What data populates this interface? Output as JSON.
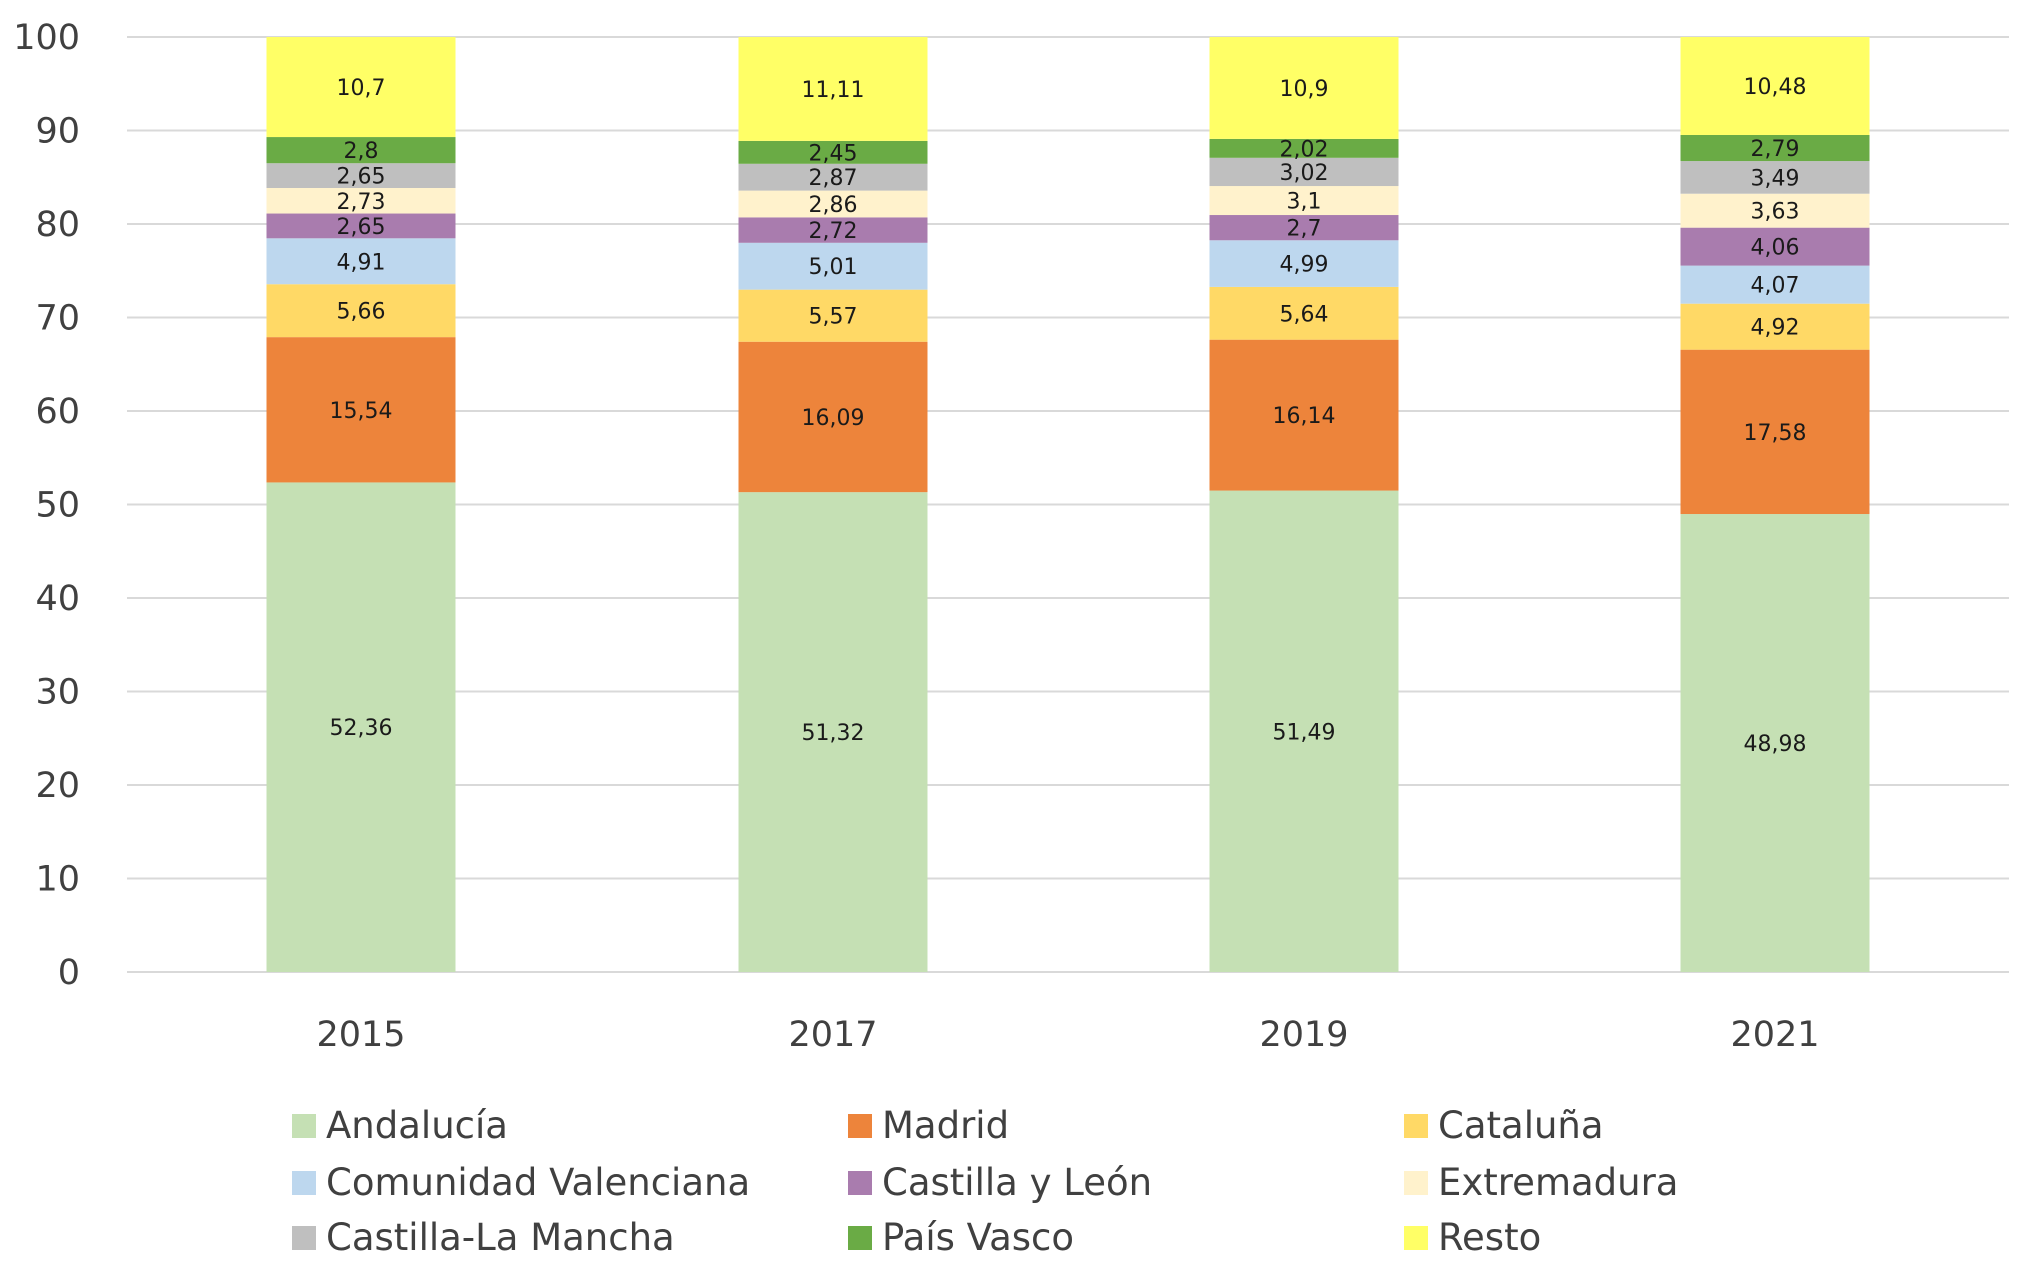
{
  "chart_data": {
    "type": "bar",
    "stacked": true,
    "title": "",
    "xlabel": "",
    "ylabel": "",
    "ylim": [
      0,
      100
    ],
    "yticks": [
      0,
      10,
      20,
      30,
      40,
      50,
      60,
      70,
      80,
      90,
      100
    ],
    "grid": true,
    "legend_position": "bottom",
    "categories": [
      "2015",
      "2017",
      "2019",
      "2021"
    ],
    "series": [
      {
        "name": "Andalucía",
        "color": "#C5E0B4",
        "values": [
          52.36,
          51.32,
          51.49,
          48.98
        ],
        "labels": [
          "52,36",
          "51,32",
          "51,49",
          "48,98"
        ]
      },
      {
        "name": "Madrid",
        "color": "#ED843B",
        "values": [
          15.54,
          16.09,
          16.14,
          17.58
        ],
        "labels": [
          "15,54",
          "16,09",
          "16,14",
          "17,58"
        ]
      },
      {
        "name": "Cataluña",
        "color": "#FFD966",
        "values": [
          5.66,
          5.57,
          5.64,
          4.92
        ],
        "labels": [
          "5,66",
          "5,57",
          "5,64",
          "4,92"
        ]
      },
      {
        "name": "Comunidad Valenciana",
        "color": "#BDD7EE",
        "values": [
          4.91,
          5.01,
          4.99,
          4.07
        ],
        "labels": [
          "4,91",
          "5,01",
          "4,99",
          "4,07"
        ]
      },
      {
        "name": "Castilla y León",
        "color": "#A97CAE",
        "values": [
          2.65,
          2.72,
          2.7,
          4.06
        ],
        "labels": [
          "2,65",
          "2,72",
          "2,7",
          "4,06"
        ]
      },
      {
        "name": "Extremadura",
        "color": "#FFF2CC",
        "values": [
          2.73,
          2.86,
          3.1,
          3.63
        ],
        "labels": [
          "2,73",
          "2,86",
          "3,1",
          "3,63"
        ]
      },
      {
        "name": "Castilla-La Mancha",
        "color": "#BFBFBF",
        "values": [
          2.65,
          2.87,
          3.02,
          3.49
        ],
        "labels": [
          "2,65",
          "2,87",
          "3,02",
          "3,49"
        ]
      },
      {
        "name": "País Vasco",
        "color": "#6AAB45",
        "values": [
          2.8,
          2.45,
          2.02,
          2.79
        ],
        "labels": [
          "2,8",
          "2,45",
          "2,02",
          "2,79"
        ]
      },
      {
        "name": "Resto",
        "color": "#FFFF66",
        "values": [
          10.7,
          11.11,
          10.9,
          10.48
        ],
        "labels": [
          "10,7",
          "11,11",
          "10,9",
          "10,48"
        ]
      }
    ],
    "legend_order": [
      "Andalucía",
      "Madrid",
      "Cataluña",
      "Comunidad Valenciana",
      "Castilla y León",
      "Extremadura",
      "Castilla-La Mancha",
      "País Vasco",
      "Resto"
    ]
  }
}
